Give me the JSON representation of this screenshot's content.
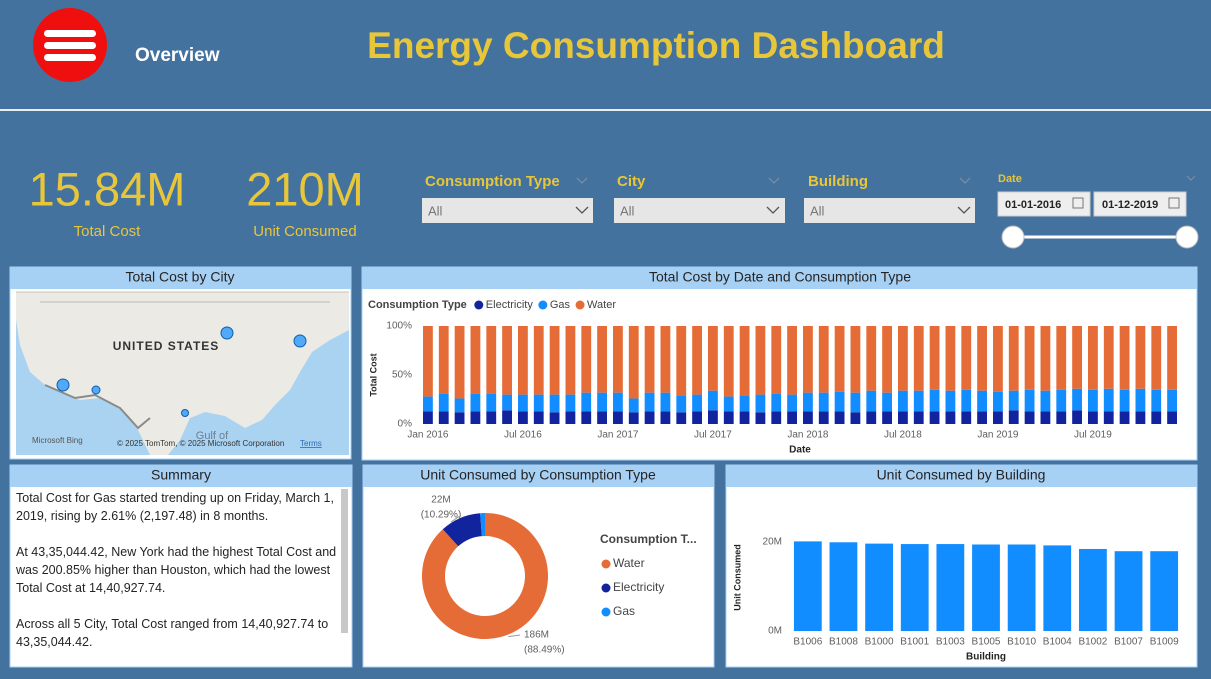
{
  "header": {
    "nav": "Overview",
    "title": "Energy Consumption Dashboard"
  },
  "kpis": [
    {
      "value": "15.84M",
      "label": "Total Cost"
    },
    {
      "value": "210M",
      "label": "Unit Consumed"
    }
  ],
  "filters": [
    {
      "label": "Consumption Type",
      "value": "All"
    },
    {
      "label": "City",
      "value": "All"
    },
    {
      "label": "Building",
      "value": "All"
    }
  ],
  "date_filter": {
    "label": "Date",
    "start": "01-01-2016",
    "end": "01-12-2019"
  },
  "map": {
    "title": "Total Cost by City",
    "country_label": "UNITED STATES",
    "sea_label": "Gulf of",
    "provider": "Microsoft Bing",
    "attribution": "© 2025 TomTom, © 2025 Microsoft Corporation",
    "terms": "Terms"
  },
  "summary": {
    "title": "Summary",
    "paragraphs": [
      "Total Cost for Gas started trending up on Friday, March 1, 2019, rising by 2.61% (2,197.48) in 8 months.",
      "At 43,35,044.42, New York had the highest Total Cost and was 200.85% higher than Houston, which had the lowest Total Cost at 14,40,927.74.",
      "Across all 5 City, Total Cost ranged from 14,40,927.74 to 43,35,044.42."
    ]
  },
  "chart_data": [
    {
      "type": "bar",
      "stacked": true,
      "title": "Total Cost by Date and Consumption Type",
      "x_label": "Date",
      "y_label": "Total Cost",
      "legend_title": "Consumption Type",
      "categories": [
        "Jan 2016",
        null,
        null,
        null,
        null,
        null,
        "Jul 2016",
        null,
        null,
        null,
        null,
        null,
        "Jan 2017",
        null,
        null,
        null,
        null,
        null,
        "Jul 2017",
        null,
        null,
        null,
        null,
        null,
        "Jan 2018",
        null,
        null,
        null,
        null,
        null,
        "Jul 2018",
        null,
        null,
        null,
        null,
        null,
        "Jan 2019",
        null,
        null,
        null,
        null,
        null,
        "Jul 2019",
        null,
        null,
        null,
        null,
        null
      ],
      "series": [
        {
          "name": "Electricity",
          "color": "#12239e",
          "values": [
            13,
            13,
            12,
            13,
            13,
            14,
            13,
            13,
            12,
            13,
            13,
            13,
            13,
            12,
            13,
            13,
            12,
            13,
            14,
            13,
            13,
            12,
            13,
            13,
            13,
            13,
            13,
            12,
            13,
            13,
            13,
            13,
            13,
            13,
            13,
            13,
            13,
            14,
            13,
            13,
            13,
            14,
            13,
            13,
            13,
            13,
            13,
            13
          ]
        },
        {
          "name": "Gas",
          "color": "#118dff",
          "values": [
            15,
            18,
            14,
            18,
            18,
            16,
            17,
            17,
            18,
            17,
            19,
            19,
            19,
            14,
            19,
            19,
            17,
            17,
            20,
            15,
            16,
            18,
            18,
            17,
            19,
            19,
            20,
            20,
            21,
            19,
            21,
            21,
            22,
            21,
            22,
            21,
            20,
            20,
            22,
            21,
            22,
            22,
            22,
            23,
            22,
            23,
            22,
            22
          ]
        },
        {
          "name": "Water",
          "color": "#e66c37",
          "values": [
            72,
            69,
            74,
            69,
            69,
            70,
            70,
            70,
            70,
            70,
            68,
            68,
            68,
            74,
            68,
            68,
            71,
            70,
            66,
            72,
            71,
            70,
            69,
            70,
            68,
            68,
            67,
            68,
            66,
            68,
            66,
            66,
            65,
            66,
            65,
            66,
            67,
            66,
            65,
            66,
            65,
            64,
            65,
            64,
            65,
            64,
            65,
            65
          ]
        }
      ],
      "ylim": [
        0,
        100
      ],
      "yticks": [
        {
          "value": 0,
          "label": "0%"
        },
        {
          "value": 50,
          "label": "50%"
        },
        {
          "value": 100,
          "label": "100%"
        }
      ],
      "grid": false
    },
    {
      "type": "pie",
      "donut": true,
      "title": "Unit Consumed by Consumption Type",
      "legend_title": "Consumption T...",
      "categories": [
        "Water",
        "Electricity",
        "Gas"
      ],
      "colors": [
        "#e66c37",
        "#12239e",
        "#118dff"
      ],
      "values": [
        186,
        22,
        2.6
      ],
      "value_labels": [
        "186M",
        "22M",
        null
      ],
      "percent_labels": [
        "(88.49%)",
        "(10.29%)",
        null
      ]
    },
    {
      "type": "bar",
      "title": "Unit Consumed by Building",
      "x_label": "Building",
      "y_label": "Unit Consumed",
      "color": "#118dff",
      "categories": [
        "B1006",
        "B1008",
        "B1000",
        "B1001",
        "B1003",
        "B1005",
        "B1010",
        "B1004",
        "B1002",
        "B1007",
        "B1009"
      ],
      "values": [
        20.1,
        19.9,
        19.6,
        19.5,
        19.5,
        19.4,
        19.4,
        19.2,
        18.4,
        17.9,
        17.9
      ],
      "ylim": [
        0,
        24
      ],
      "yticks": [
        {
          "value": 0,
          "label": "0M"
        },
        {
          "value": 20,
          "label": "20M"
        }
      ],
      "grid": false
    }
  ]
}
